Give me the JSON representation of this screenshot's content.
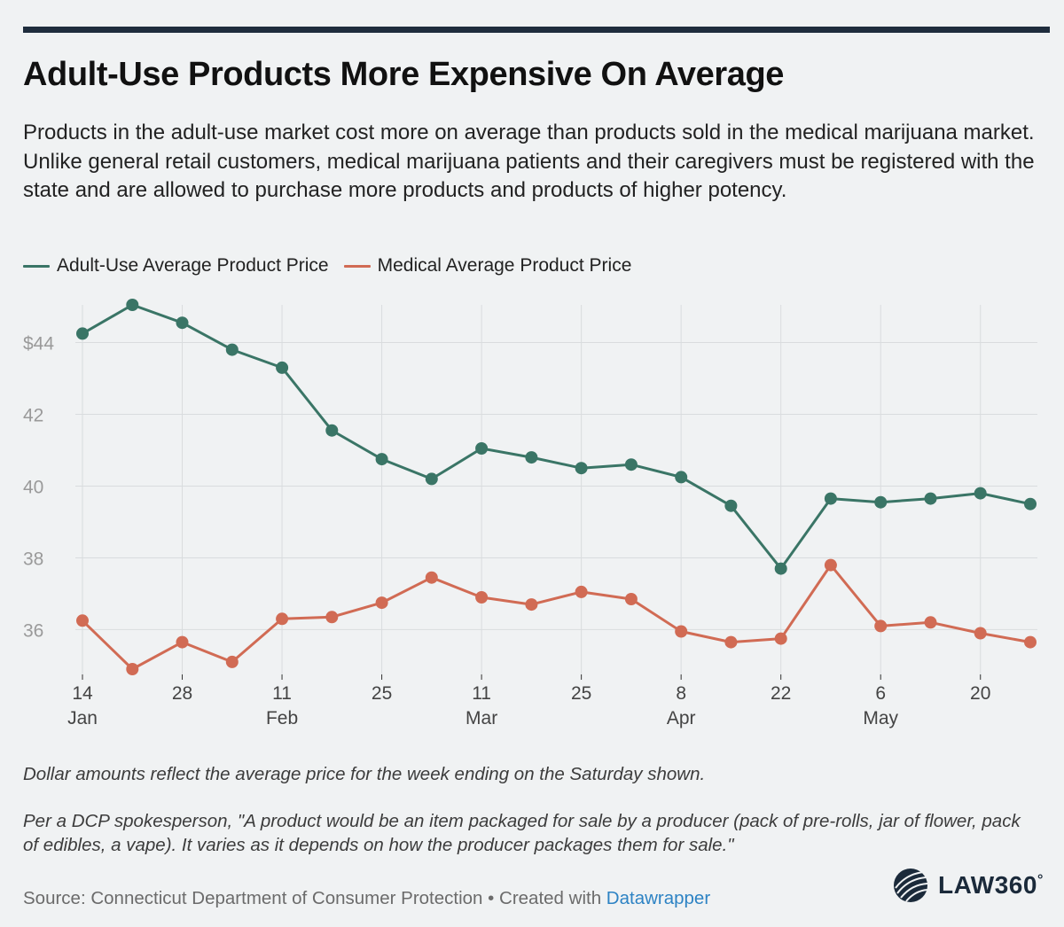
{
  "header": {
    "title": "Adult-Use Products More Expensive On Average",
    "subtitle": "Products in the adult-use market cost more on average than products sold in the medical marijuana market. Unlike general retail customers, medical marijuana patients and their caregivers must be registered with the state and are allowed to purchase more products and products of higher potency."
  },
  "chart_data": {
    "type": "line",
    "title": "Adult-Use Products More Expensive On Average",
    "xlabel": "",
    "ylabel": "",
    "x": [
      "Jan 14",
      "Jan 21",
      "Jan 28",
      "Feb 4",
      "Feb 11",
      "Feb 18",
      "Feb 25",
      "Mar 4",
      "Mar 11",
      "Mar 18",
      "Mar 25",
      "Apr 1",
      "Apr 8",
      "Apr 15",
      "Apr 22",
      "Apr 29",
      "May 6",
      "May 13",
      "May 20",
      "May 27"
    ],
    "x_ticks": [
      {
        "index": 0,
        "day": "14",
        "month": "Jan"
      },
      {
        "index": 2,
        "day": "28",
        "month": ""
      },
      {
        "index": 4,
        "day": "11",
        "month": "Feb"
      },
      {
        "index": 6,
        "day": "25",
        "month": ""
      },
      {
        "index": 8,
        "day": "11",
        "month": "Mar"
      },
      {
        "index": 10,
        "day": "25",
        "month": ""
      },
      {
        "index": 12,
        "day": "8",
        "month": "Apr"
      },
      {
        "index": 14,
        "day": "22",
        "month": ""
      },
      {
        "index": 16,
        "day": "6",
        "month": "May"
      },
      {
        "index": 18,
        "day": "20",
        "month": ""
      }
    ],
    "y_ticks": [
      {
        "value": 36,
        "label": "36"
      },
      {
        "value": 38,
        "label": "38"
      },
      {
        "value": 40,
        "label": "40"
      },
      {
        "value": 42,
        "label": "42"
      },
      {
        "value": 44,
        "label": "$44"
      }
    ],
    "ylim": [
      34.85,
      45.05
    ],
    "grid": true,
    "legend_position": "top-left",
    "series": [
      {
        "name": "Adult-Use Average Product Price",
        "color": "#3a7566",
        "values": [
          44.25,
          45.05,
          44.55,
          43.8,
          43.3,
          41.55,
          40.75,
          40.2,
          41.05,
          40.8,
          40.5,
          40.6,
          40.25,
          39.45,
          37.7,
          39.65,
          39.55,
          39.65,
          39.8,
          39.5
        ]
      },
      {
        "name": "Medical Average Product Price",
        "color": "#d16b54",
        "values": [
          36.25,
          34.9,
          35.65,
          35.1,
          36.3,
          36.35,
          36.75,
          37.45,
          36.9,
          36.7,
          37.05,
          36.85,
          35.95,
          35.65,
          35.75,
          37.8,
          36.1,
          36.2,
          35.9,
          35.65
        ]
      }
    ]
  },
  "notes": {
    "note1": "Dollar amounts reflect the average price for the week ending on the Saturday shown.",
    "note2": "Per a DCP spokesperson, \"A product would be an item packaged for sale by a producer (pack of pre-rolls, jar of flower, pack of edibles, a vape). It varies as it depends on how the producer packages them for sale.\""
  },
  "footer": {
    "source_prefix": "Source: Connecticut Department of Consumer Protection • Created with ",
    "source_link": "Datawrapper",
    "logo_text": "LAW360",
    "logo_mark": "°"
  },
  "colors": {
    "accent": "#1f2d3d",
    "adult_use": "#3a7566",
    "medical": "#d16b54",
    "link": "#2d83c4"
  }
}
